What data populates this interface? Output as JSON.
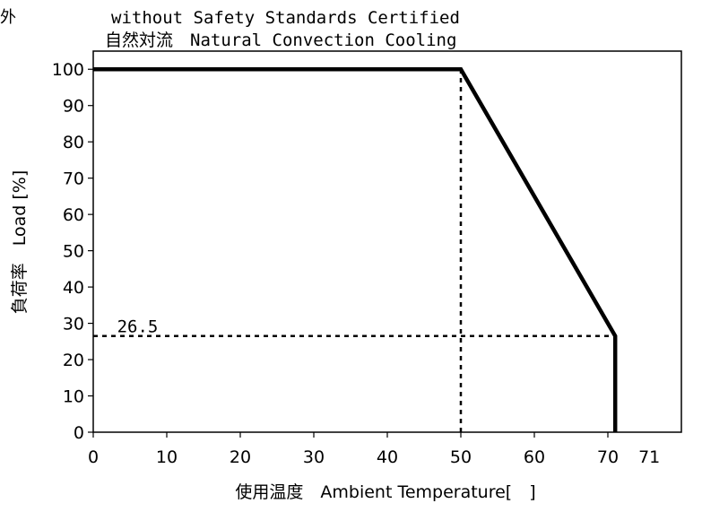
{
  "chart_data": {
    "type": "line",
    "corner_label": "外",
    "title_line1": "without Safety Standards Certified",
    "title_line2": "自然対流　Natural Convection Cooling",
    "xlabel": "使用温度　Ambient Temperature[　]",
    "ylabel": "負荷率　Load [%]",
    "xlim": [
      0,
      80
    ],
    "ylim": [
      0,
      105
    ],
    "x_ticks": [
      0,
      10,
      20,
      30,
      40,
      50,
      60,
      70
    ],
    "x_tick_labels": [
      "0",
      "10",
      "20",
      "30",
      "40",
      "50",
      "60",
      "70"
    ],
    "extra_x_label": {
      "value": 71,
      "text": "71"
    },
    "y_ticks": [
      0,
      10,
      20,
      30,
      40,
      50,
      60,
      70,
      80,
      90,
      100
    ],
    "y_tick_labels": [
      "0",
      "10",
      "20",
      "30",
      "40",
      "50",
      "60",
      "70",
      "80",
      "90",
      "100"
    ],
    "grid": false,
    "series": [
      {
        "x": [
          0,
          50,
          71,
          71
        ],
        "y": [
          100,
          100,
          26.5,
          0
        ]
      }
    ],
    "reference_lines": [
      {
        "orientation": "vertical",
        "x": 50,
        "y_from": 0,
        "y_to": 100
      },
      {
        "orientation": "horizontal",
        "y": 26.5,
        "x_from": 0,
        "x_to": 71
      }
    ],
    "annotations": [
      {
        "text": "26.5",
        "x": 3,
        "y": 26.5
      }
    ]
  }
}
